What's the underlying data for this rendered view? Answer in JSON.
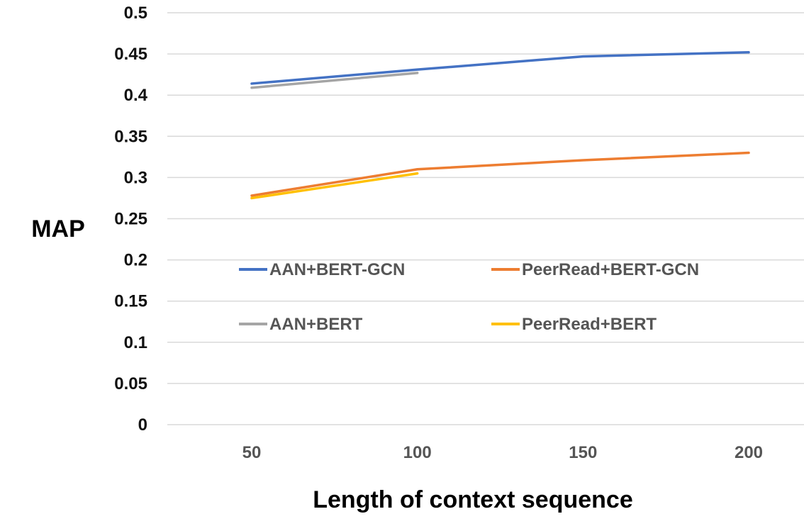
{
  "chart_data": {
    "type": "line",
    "xlabel": "Length of context sequence",
    "ylabel": "MAP",
    "x": [
      50,
      100,
      150,
      200
    ],
    "x_tick_labels": [
      "50",
      "100",
      "150",
      "200"
    ],
    "ylim": [
      0,
      0.5
    ],
    "y_tick_labels": [
      "0",
      "0.05",
      "0.1",
      "0.15",
      "0.2",
      "0.25",
      "0.3",
      "0.35",
      "0.4",
      "0.45",
      "0.5"
    ],
    "grid": "horizontal",
    "legend_position": "center",
    "series": [
      {
        "name": "AAN+BERT-GCN",
        "color": "#4472C4",
        "x": [
          50,
          100,
          150,
          200
        ],
        "values": [
          0.414,
          0.431,
          0.447,
          0.452
        ]
      },
      {
        "name": "PeerRead+BERT-GCN",
        "color": "#ED7D31",
        "x": [
          50,
          100,
          150,
          200
        ],
        "values": [
          0.278,
          0.31,
          0.321,
          0.33
        ]
      },
      {
        "name": "AAN+BERT",
        "color": "#A5A5A5",
        "x": [
          50,
          100
        ],
        "values": [
          0.409,
          0.427
        ]
      },
      {
        "name": "PeerRead+BERT",
        "color": "#FFC000",
        "x": [
          50,
          100
        ],
        "values": [
          0.275,
          0.305
        ]
      }
    ]
  }
}
